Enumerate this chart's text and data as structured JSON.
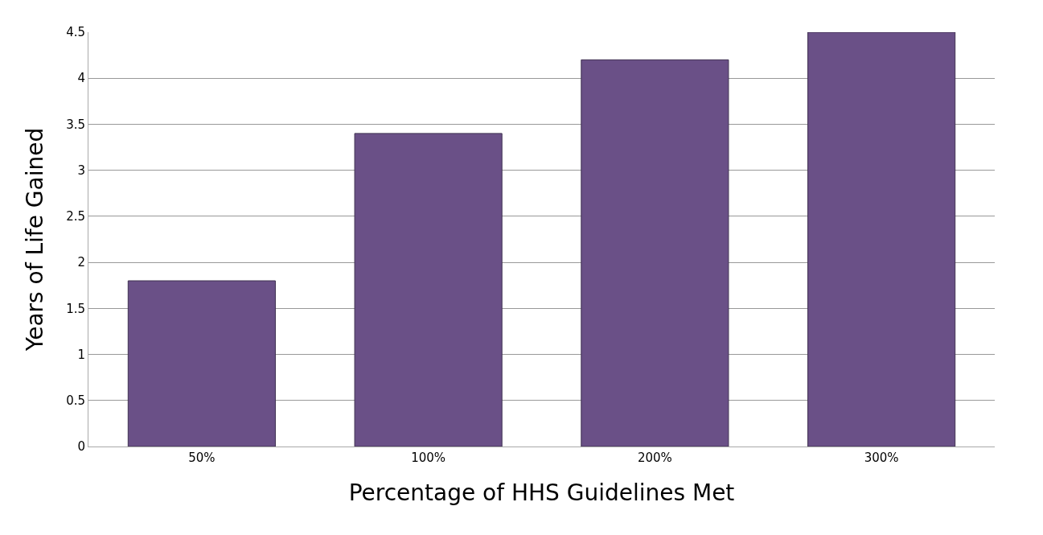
{
  "chart_data": {
    "type": "bar",
    "xlabel": "Percentage of HHS Guidelines Met",
    "ylabel": "Years of Life Gained",
    "categories": [
      "50%",
      "100%",
      "200%",
      "300%"
    ],
    "values": [
      1.8,
      3.4,
      4.2,
      4.5
    ],
    "color": "#6a5087",
    "ylim": [
      0,
      4.5
    ],
    "yticks": [
      0,
      0.5,
      1,
      1.5,
      2,
      2.5,
      3,
      3.5,
      4,
      4.5
    ],
    "grid": "y"
  }
}
